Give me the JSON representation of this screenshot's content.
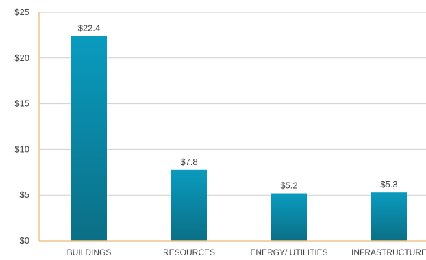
{
  "chart_data": {
    "type": "bar",
    "categories": [
      "BUILDINGS",
      "RESOURCES",
      "ENERGY/ UTILITIES",
      "INFRASTRUCTURE"
    ],
    "values": [
      22.4,
      7.8,
      5.2,
      5.3
    ],
    "value_labels": [
      "$22.4",
      "$7.8",
      "$5.2",
      "$5.3"
    ],
    "ylim": [
      0,
      25
    ],
    "y_ticks": [
      0,
      5,
      10,
      15,
      20,
      25
    ],
    "y_tick_labels": [
      "$0",
      "$5",
      "$10",
      "$15",
      "$20",
      "$25"
    ],
    "grid": true,
    "legend": "none",
    "colors": {
      "bar_top": "#0a9bbf",
      "bar_bottom": "#0b6f86",
      "gridline": "#cfcfcf",
      "axis": "#f3c48c",
      "text": "#444444"
    }
  }
}
